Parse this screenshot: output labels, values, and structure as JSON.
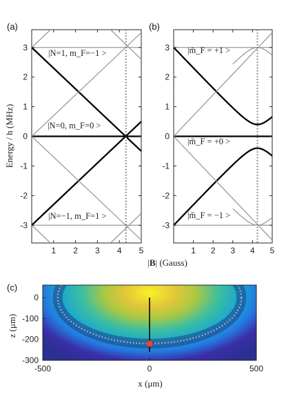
{
  "colors": {
    "thick_line": "#000000",
    "thin_line": "#9a9a9a",
    "dotted_line": "#808080",
    "marker": "#e0483f"
  },
  "chart_data": [
    {
      "panel": "(a)",
      "type": "line",
      "xlim": [
        0,
        5
      ],
      "ylim": [
        -3.6,
        3.6
      ],
      "xticks": [
        "1",
        "2",
        "3",
        "4",
        "5"
      ],
      "yticks": [
        "3",
        "2",
        "1",
        "0",
        "-1",
        "-2",
        "-3"
      ],
      "ylabel": "Energy / h (MHz)",
      "vline_x": 4.3,
      "annotations": [
        "|N=1, m_F=−1 >",
        "|N=0, m_F=0 >",
        "|N=−1, m_F=1 >"
      ],
      "series": [
        {
          "style": "thick",
          "x": [
            0,
            5
          ],
          "y": [
            3,
            -0.5
          ]
        },
        {
          "style": "thick",
          "x": [
            0,
            5
          ],
          "y": [
            -3,
            0.5
          ]
        },
        {
          "style": "thick",
          "x": [
            0,
            5
          ],
          "y": [
            0,
            0
          ]
        },
        {
          "style": "thin",
          "x": [
            0,
            5
          ],
          "y": [
            0,
            3.5
          ]
        },
        {
          "style": "thin",
          "x": [
            0,
            5
          ],
          "y": [
            0,
            -3.5
          ]
        },
        {
          "style": "thin",
          "x": [
            0,
            5
          ],
          "y": [
            3,
            6.5
          ]
        },
        {
          "style": "thin",
          "x": [
            0,
            5
          ],
          "y": [
            -3,
            -6.5
          ]
        },
        {
          "style": "thin",
          "x": [
            3.6,
            5
          ],
          "y": [
            3.6,
            2.6
          ]
        },
        {
          "style": "thin",
          "x": [
            3.6,
            5
          ],
          "y": [
            -3.6,
            -2.6
          ]
        },
        {
          "style": "thin",
          "x": [
            0,
            5
          ],
          "y": [
            3,
            3
          ]
        },
        {
          "style": "thin",
          "x": [
            0,
            5
          ],
          "y": [
            -3,
            -3
          ]
        }
      ]
    },
    {
      "panel": "(b)",
      "type": "line",
      "xlim": [
        0,
        5
      ],
      "ylim": [
        -3.6,
        3.6
      ],
      "xticks": [
        "1",
        "2",
        "3",
        "4",
        "5"
      ],
      "yticks": [
        "3",
        "2",
        "1",
        "0",
        "-1",
        "-2",
        "-3"
      ],
      "vline_x": 4.25,
      "annotations": [
        "|m̃_F = +1 >",
        "|m̃_F = +0 >",
        "|m̃_F = −1 >"
      ],
      "avoided_crossing_gap_MHz": 0.4,
      "series": [
        {
          "style": "thick",
          "function": "upper_branch",
          "x": [
            0,
            1,
            2,
            3,
            4,
            4.25,
            4.5,
            5
          ],
          "y": [
            3,
            2.3,
            1.6,
            0.9,
            0.47,
            0.4,
            0.47,
            0.66
          ]
        },
        {
          "style": "thick",
          "function": "lower_branch",
          "x": [
            0,
            1,
            2,
            3,
            4,
            4.25,
            4.5,
            5
          ],
          "y": [
            -3,
            -2.3,
            -1.6,
            -0.9,
            -0.47,
            -0.4,
            -0.47,
            -0.66
          ]
        },
        {
          "style": "thick",
          "x": [
            0,
            5
          ],
          "y": [
            0,
            0
          ]
        },
        {
          "style": "thin",
          "function": "upper_avoided",
          "x": [
            0,
            1,
            2,
            3,
            4,
            5
          ],
          "y": [
            0,
            0.7,
            1.4,
            2.1,
            2.8,
            3.5
          ]
        },
        {
          "style": "thin",
          "function": "lower_avoided",
          "x": [
            0,
            1,
            2,
            3,
            4,
            5
          ],
          "y": [
            0,
            -0.7,
            -1.4,
            -2.1,
            -2.8,
            -3.5
          ]
        }
      ]
    },
    {
      "panel": "(c)",
      "type": "heatmap",
      "xlabel": "x (μm)",
      "ylabel": "z (μm)",
      "xlim": [
        -500,
        500
      ],
      "ylim": [
        -300,
        60
      ],
      "xticks": [
        "-500",
        "0",
        "500"
      ],
      "yticks": [
        "0",
        "-100",
        "-200",
        "-300"
      ],
      "resonance_ellipse": {
        "center": [
          0,
          0
        ],
        "semi_axes": [
          430,
          220
        ]
      },
      "vertical_line": {
        "x": 0,
        "z": [
          0,
          -260
        ]
      },
      "marker": {
        "x": 0,
        "z": -220
      }
    }
  ],
  "labels": {
    "panel_a": "(a)",
    "panel_b": "(b)",
    "panel_c": "(c)",
    "xlabel_ab_pre": "|",
    "xlabel_ab_B": "B",
    "xlabel_ab_post": "| (Gauss)",
    "ylabel_ab": "Energy / h (MHz)",
    "a_state1": "|N=1, m_F=−1 >",
    "a_state2": "|N=0, m_F=0 >",
    "a_state3": "|N=−1, m_F=1 >",
    "b_state1": "|m̃_F = +1 >",
    "b_state2": "|m̃_F = +0 >",
    "b_state3": "|m̃_F = −1 >",
    "xlabel_c": "x (μm)",
    "ylabel_c": "z (μm)"
  }
}
